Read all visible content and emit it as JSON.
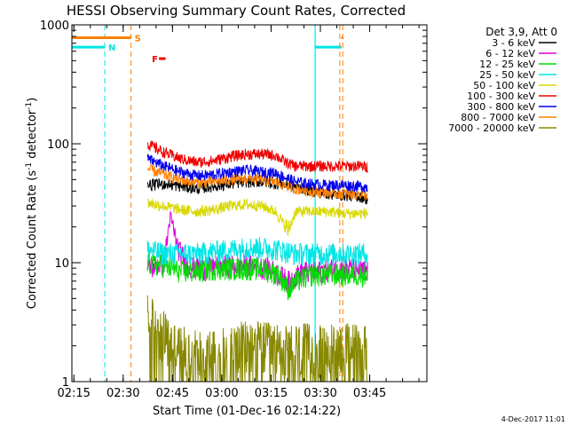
{
  "chart_data": {
    "type": "line",
    "title": "HESSI Observing Summary Count Rates, Corrected",
    "xlabel": "Start Time (01-Dec-16 02:14:22)",
    "ylabel_main": "Corrected Count Rate (s",
    "ylabel_sup1": "-1",
    "ylabel_mid": " detector",
    "ylabel_sup2": "-1",
    "ylabel_end": ")",
    "x_unit": "minutes after 02:14:22",
    "xlim": [
      0,
      108
    ],
    "ylim": [
      1,
      1000
    ],
    "y_scale": "log",
    "x_ticks": [
      {
        "label": "02:15",
        "x": 0.6
      },
      {
        "label": "02:30",
        "x": 15.6
      },
      {
        "label": "02:45",
        "x": 30.6
      },
      {
        "label": "03:00",
        "x": 45.6
      },
      {
        "label": "03:15",
        "x": 60.6
      },
      {
        "label": "03:30",
        "x": 75.6
      },
      {
        "label": "03:45",
        "x": 90.6
      }
    ],
    "y_ticks": [
      {
        "label": "1",
        "y": 1
      },
      {
        "label": "10",
        "y": 10
      },
      {
        "label": "100",
        "y": 100
      },
      {
        "label": "1000",
        "y": 1000
      }
    ],
    "legend_title": "Det 3,9, Att 0",
    "legend_position": "right",
    "series": [
      {
        "name": "3 - 6 keV",
        "color": "#000000",
        "x": [
          23,
          28,
          33,
          38,
          43,
          48,
          53,
          58,
          63,
          68,
          73,
          78,
          83,
          88,
          90
        ],
        "y": [
          45,
          46,
          44,
          42,
          44,
          46,
          48,
          48,
          46,
          44,
          40,
          38,
          37,
          36,
          34
        ]
      },
      {
        "name": "6 - 12 keV",
        "color": "#dd00dd",
        "x": [
          23,
          28,
          30,
          32,
          35,
          40,
          45,
          50,
          55,
          60,
          63,
          66,
          70,
          75,
          80,
          85,
          90
        ],
        "y": [
          9,
          10,
          25,
          14,
          9.5,
          9,
          9.5,
          9.5,
          9.5,
          9,
          8,
          7,
          8.5,
          8.5,
          9,
          9,
          8.5
        ]
      },
      {
        "name": "12 - 25 keV",
        "color": "#00dd00",
        "x": [
          23,
          28,
          33,
          38,
          43,
          48,
          53,
          58,
          63,
          66,
          68,
          73,
          78,
          83,
          88,
          90
        ],
        "y": [
          10,
          9.5,
          8.5,
          8.5,
          9,
          9,
          9,
          9,
          8,
          6,
          7,
          8,
          8,
          8,
          8,
          8
        ]
      },
      {
        "name": "25 - 50 keV",
        "color": "#00e5e5",
        "x": [
          23,
          28,
          33,
          38,
          43,
          48,
          53,
          58,
          63,
          68,
          73,
          78,
          83,
          88,
          90
        ],
        "y": [
          13,
          12,
          12,
          12,
          12.5,
          13,
          13.5,
          13.5,
          13,
          12,
          12,
          12,
          12,
          12,
          12
        ]
      },
      {
        "name": "50 - 100 keV",
        "color": "#d8d800",
        "x": [
          23,
          28,
          33,
          38,
          43,
          48,
          53,
          58,
          62,
          65,
          66,
          68,
          73,
          78,
          83,
          88,
          90
        ],
        "y": [
          32,
          30,
          28,
          27,
          28,
          30,
          31,
          30,
          27,
          20,
          19,
          27,
          27,
          27,
          26,
          26,
          26
        ]
      },
      {
        "name": "100 - 300 keV",
        "color": "#ee0000",
        "x": [
          23,
          28,
          33,
          38,
          43,
          48,
          53,
          58,
          62,
          65,
          68,
          73,
          78,
          83,
          88,
          90
        ],
        "y": [
          100,
          85,
          75,
          70,
          72,
          78,
          82,
          82,
          80,
          70,
          65,
          65,
          65,
          65,
          65,
          64
        ]
      },
      {
        "name": "300 - 800 keV",
        "color": "#0000ee",
        "x": [
          23,
          28,
          33,
          38,
          43,
          48,
          53,
          58,
          62,
          65,
          68,
          73,
          78,
          83,
          88,
          90
        ],
        "y": [
          75,
          65,
          58,
          54,
          55,
          58,
          60,
          58,
          57,
          52,
          48,
          46,
          45,
          45,
          44,
          43
        ]
      },
      {
        "name": "800 - 7000 keV",
        "color": "#ff8000",
        "x": [
          23,
          28,
          33,
          38,
          43,
          48,
          53,
          58,
          62,
          65,
          68,
          73,
          78,
          83,
          88,
          90
        ],
        "y": [
          62,
          55,
          50,
          47,
          48,
          50,
          51,
          50,
          48,
          45,
          42,
          40,
          39,
          38,
          38,
          37
        ]
      },
      {
        "name": "7000 - 20000 keV",
        "color": "#888800",
        "x": [
          23,
          26,
          30,
          33,
          36,
          40,
          45,
          50,
          55,
          60,
          65,
          70,
          75,
          80,
          85,
          90
        ],
        "y": [
          3,
          2.5,
          1.8,
          1.6,
          1.5,
          1.5,
          1.6,
          1.7,
          1.8,
          1.7,
          1.6,
          1.7,
          1.6,
          1.7,
          1.7,
          1.7
        ]
      }
    ],
    "markers": [
      {
        "label": "N",
        "color": "#00e5e5",
        "bars": [
          {
            "x": [
              0,
              10
            ],
            "y": 650
          },
          {
            "x": [
              74,
              82
            ],
            "y": 650
          }
        ],
        "dashed_lines_x": [
          10
        ],
        "solid_lines_x": [
          74
        ]
      },
      {
        "label": "S",
        "color": "#ff8000",
        "bars": [
          {
            "x": [
              0,
              18
            ],
            "y": 780
          },
          {
            "x": [
              82,
              82.6
            ],
            "y": 780
          }
        ],
        "dashed_lines_x": [
          18,
          81.5,
          82.4
        ],
        "solid_lines_x": []
      },
      {
        "label": "F",
        "color": "#ee0000",
        "bars": [
          {
            "x": [
              26.5,
              28.5
            ],
            "y": 520
          }
        ],
        "dashed_lines_x": [],
        "solid_lines_x": []
      }
    ],
    "grid": false
  },
  "footer": {
    "date": "4-Dec-2017 11:01"
  }
}
